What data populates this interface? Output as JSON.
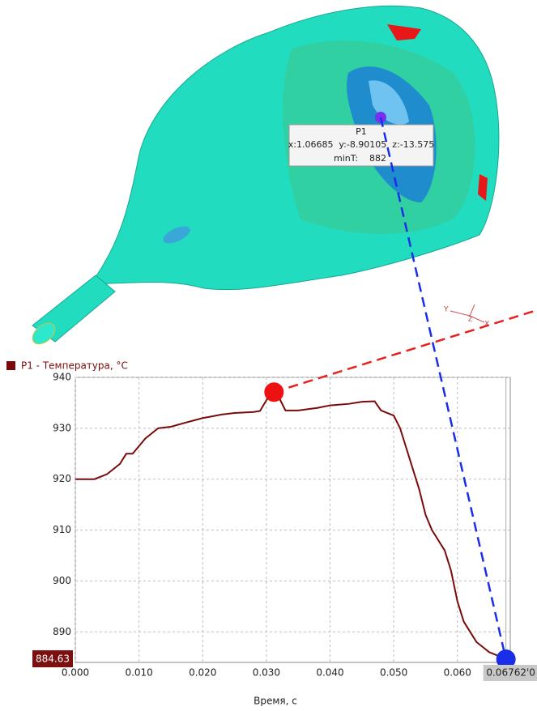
{
  "probe": {
    "name": "P1",
    "coords": "x:1.06685  y:-8.90105  z:-13.575",
    "min_label": "minT:",
    "min_value": 882
  },
  "axes_triad": [
    "Y",
    "Z",
    "X"
  ],
  "chart_data": {
    "type": "line",
    "x": [
      0.0,
      0.003,
      0.005,
      0.007,
      0.008,
      0.009,
      0.01,
      0.011,
      0.012,
      0.013,
      0.015,
      0.017,
      0.02,
      0.023,
      0.025,
      0.028,
      0.029,
      0.03,
      0.031,
      0.032,
      0.033,
      0.035,
      0.038,
      0.04,
      0.043,
      0.045,
      0.047,
      0.048,
      0.05,
      0.051,
      0.052,
      0.053,
      0.054,
      0.055,
      0.056,
      0.057,
      0.058,
      0.059,
      0.06,
      0.061,
      0.062,
      0.063,
      0.064,
      0.065,
      0.066,
      0.06762
    ],
    "series": [
      {
        "name": "P1 - Температура, °C",
        "color": "#7a0a0a",
        "values": [
          920,
          920,
          921,
          923,
          925,
          925,
          926.5,
          928,
          929,
          930,
          930.3,
          931,
          932,
          932.7,
          933,
          933.2,
          933.4,
          935.5,
          937,
          936,
          933.5,
          933.5,
          934,
          934.5,
          934.8,
          935.2,
          935.3,
          933.5,
          932.5,
          930,
          926,
          922,
          918,
          913,
          910,
          908,
          906,
          902,
          896,
          892,
          890,
          888,
          887,
          886,
          885.5,
          884.63
        ]
      }
    ],
    "x_label": "Время, с",
    "xlim": [
      0,
      0.0683
    ],
    "ylim": [
      884,
      940
    ],
    "xticks": [
      {
        "value": 0,
        "label": "0.000"
      },
      {
        "value": 0.01,
        "label": "0.010"
      },
      {
        "value": 0.02,
        "label": "0.020"
      },
      {
        "value": 0.03,
        "label": "0.030"
      },
      {
        "value": 0.04,
        "label": "0.040"
      },
      {
        "value": 0.05,
        "label": "0.050"
      },
      {
        "value": 0.06,
        "label": "0.060"
      }
    ],
    "yticks": [
      890,
      900,
      910,
      920,
      930,
      940
    ],
    "grid": true,
    "markers": [
      {
        "x": 0.0312,
        "y": 937.1,
        "color": "#ee1111"
      },
      {
        "x": 0.06762,
        "y": 884.63,
        "color": "#1a2ee8"
      }
    ],
    "cursor": {
      "x": 0.06762,
      "y": 884.63,
      "x_label": "0.06762'0",
      "y_label": "884.63"
    }
  }
}
